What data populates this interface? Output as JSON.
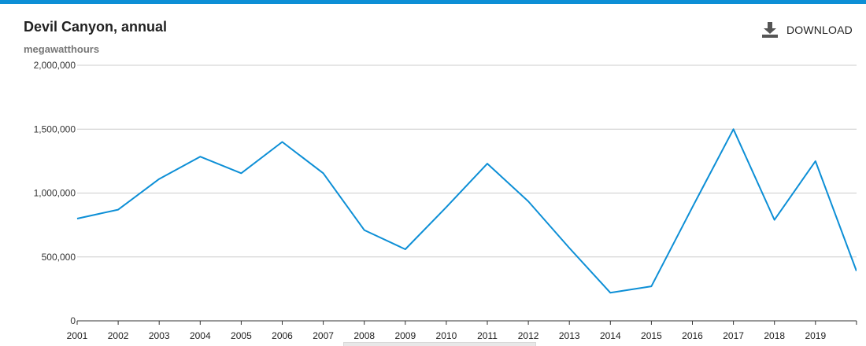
{
  "header": {
    "title": "Devil Canyon, annual",
    "subtitle": "megawatthours",
    "download_label": "DOWNLOAD"
  },
  "colors": {
    "accent": "#0d8fd6",
    "line": "#0d8fd6",
    "grid": "#cccccc"
  },
  "icons": {
    "download": "download-icon"
  },
  "chart_data": {
    "type": "line",
    "title": "Devil Canyon, annual",
    "subtitle": "megawatthours",
    "xlabel": "",
    "ylabel": "",
    "ylim": [
      0,
      2000000
    ],
    "yticks": [
      0,
      500000,
      1000000,
      1500000,
      2000000
    ],
    "ytick_labels": [
      "0",
      "500,000",
      "1,000,000",
      "1,500,000",
      "2,000,000"
    ],
    "grid": true,
    "legend": "none",
    "x": [
      2001,
      2002,
      2003,
      2004,
      2005,
      2006,
      2007,
      2008,
      2009,
      2010,
      2011,
      2012,
      2013,
      2014,
      2015,
      2016,
      2017,
      2018,
      2019,
      2020
    ],
    "xtick_labels": [
      "2001",
      "2002",
      "2003",
      "2004",
      "2005",
      "2006",
      "2007",
      "2008",
      "2009",
      "2010",
      "2011",
      "2012",
      "2013",
      "2014",
      "2015",
      "2016",
      "2017",
      "2018",
      "2019"
    ],
    "series": [
      {
        "values": [
          800000,
          870000,
          1110000,
          1285000,
          1155000,
          1400000,
          1155000,
          710000,
          560000,
          890000,
          1230000,
          935000,
          570000,
          220000,
          270000,
          890000,
          1500000,
          790000,
          1250000,
          390000
        ]
      }
    ]
  }
}
